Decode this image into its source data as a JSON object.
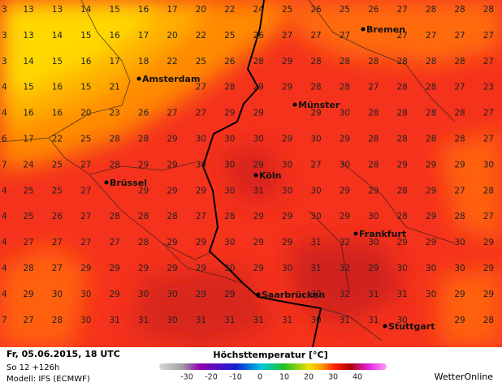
{
  "map": {
    "grid": [
      [
        3,
        13,
        13,
        14,
        15,
        16,
        17,
        20,
        22,
        24,
        25,
        26,
        25,
        26,
        27,
        28,
        28,
        28
      ],
      [
        3,
        13,
        14,
        15,
        16,
        17,
        20,
        22,
        25,
        26,
        27,
        27,
        27,
        null,
        27,
        27,
        27,
        27
      ],
      [
        3,
        14,
        15,
        16,
        17,
        18,
        22,
        25,
        26,
        28,
        29,
        28,
        28,
        28,
        28,
        28,
        28,
        27
      ],
      [
        4,
        15,
        16,
        15,
        21,
        null,
        null,
        27,
        28,
        29,
        29,
        28,
        28,
        27,
        28,
        28,
        27,
        23
      ],
      [
        4,
        16,
        16,
        20,
        23,
        26,
        27,
        27,
        29,
        29,
        null,
        29,
        30,
        28,
        28,
        28,
        28,
        27
      ],
      [
        6,
        17,
        22,
        25,
        28,
        28,
        29,
        30,
        30,
        30,
        29,
        30,
        29,
        28,
        28,
        28,
        28,
        27
      ],
      [
        7,
        24,
        25,
        27,
        28,
        29,
        29,
        30,
        30,
        29,
        30,
        27,
        30,
        28,
        29,
        29,
        29,
        30
      ],
      [
        4,
        25,
        25,
        27,
        null,
        29,
        29,
        29,
        30,
        31,
        30,
        30,
        29,
        29,
        28,
        29,
        27,
        28
      ],
      [
        4,
        25,
        26,
        27,
        28,
        28,
        28,
        27,
        28,
        29,
        29,
        30,
        29,
        30,
        28,
        29,
        28,
        27
      ],
      [
        4,
        27,
        27,
        27,
        27,
        28,
        29,
        29,
        30,
        29,
        29,
        31,
        32,
        30,
        29,
        29,
        30,
        29
      ],
      [
        4,
        28,
        27,
        29,
        29,
        29,
        29,
        29,
        30,
        29,
        30,
        31,
        32,
        29,
        30,
        30,
        30,
        29
      ],
      [
        4,
        29,
        30,
        30,
        29,
        30,
        30,
        29,
        29,
        null,
        null,
        30,
        32,
        31,
        31,
        30,
        29,
        29
      ],
      [
        7,
        27,
        28,
        30,
        31,
        31,
        30,
        31,
        31,
        31,
        31,
        30,
        31,
        31,
        30,
        null,
        29,
        28
      ]
    ],
    "cities": [
      "Bremen",
      "Amsterdam",
      "Münster",
      "Köln",
      "Brüssel",
      "Frankfurt",
      "Saarbrücken",
      "Stuttgart"
    ]
  },
  "footer": {
    "date": "Fr, 05.06.2015, 18 UTC",
    "run": "So 12 +126h",
    "model": "Modell: IFS (ECMWF)",
    "legend": {
      "title": "Höchsttemperatur [°C]",
      "ticks": [
        -30,
        -20,
        -10,
        0,
        10,
        20,
        30,
        40
      ]
    },
    "brand": "WetterOnline"
  }
}
